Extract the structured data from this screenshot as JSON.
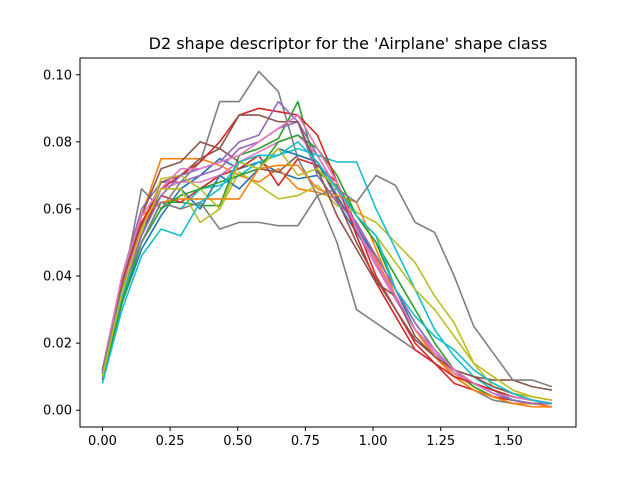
{
  "chart_data": {
    "type": "line",
    "title": "D2 shape descriptor for the 'Airplane' shape class",
    "xlabel": "",
    "ylabel": "",
    "xlim": [
      -0.083,
      1.75
    ],
    "ylim": [
      -0.005,
      0.105
    ],
    "xticks": [
      0.0,
      0.25,
      0.5,
      0.75,
      1.0,
      1.25,
      1.5
    ],
    "xtick_labels": [
      "0.00",
      "0.25",
      "0.50",
      "0.75",
      "1.00",
      "1.25",
      "1.50"
    ],
    "yticks": [
      0.0,
      0.02,
      0.04,
      0.06,
      0.08,
      0.1
    ],
    "ytick_labels": [
      "0.00",
      "0.02",
      "0.04",
      "0.06",
      "0.08",
      "0.10"
    ],
    "grid": false,
    "legend": "none",
    "x": [
      0.0,
      0.0722,
      0.1444,
      0.2167,
      0.2889,
      0.3611,
      0.4333,
      0.5056,
      0.5778,
      0.65,
      0.7222,
      0.7944,
      0.8667,
      0.9389,
      1.0111,
      1.0833,
      1.1556,
      1.2278,
      1.3,
      1.3722,
      1.4444,
      1.5167,
      1.5889,
      1.6611
    ],
    "series": [
      {
        "color": "#1f77b4",
        "values": [
          0.01,
          0.035,
          0.052,
          0.066,
          0.066,
          0.07,
          0.075,
          0.072,
          0.074,
          0.071,
          0.069,
          0.07,
          0.062,
          0.053,
          0.044,
          0.033,
          0.024,
          0.018,
          0.012,
          0.008,
          0.006,
          0.004,
          0.003,
          0.002
        ]
      },
      {
        "color": "#ff7f0e",
        "values": [
          0.011,
          0.038,
          0.058,
          0.075,
          0.075,
          0.075,
          0.073,
          0.07,
          0.068,
          0.072,
          0.066,
          0.065,
          0.063,
          0.056,
          0.045,
          0.034,
          0.024,
          0.016,
          0.011,
          0.007,
          0.004,
          0.002,
          0.001,
          0.001
        ]
      },
      {
        "color": "#2ca02c",
        "values": [
          0.009,
          0.033,
          0.05,
          0.062,
          0.062,
          0.061,
          0.061,
          0.076,
          0.078,
          0.081,
          0.092,
          0.071,
          0.067,
          0.058,
          0.05,
          0.04,
          0.03,
          0.02,
          0.012,
          0.007,
          0.004,
          0.003,
          0.002,
          0.002
        ]
      },
      {
        "color": "#d62728",
        "values": [
          0.011,
          0.036,
          0.054,
          0.064,
          0.062,
          0.066,
          0.07,
          0.072,
          0.076,
          0.067,
          0.075,
          0.073,
          0.068,
          0.055,
          0.04,
          0.03,
          0.02,
          0.014,
          0.008,
          0.006,
          0.004,
          0.003,
          0.002,
          0.001
        ]
      },
      {
        "color": "#9467bd",
        "values": [
          0.012,
          0.04,
          0.06,
          0.068,
          0.068,
          0.07,
          0.072,
          0.078,
          0.08,
          0.084,
          0.086,
          0.076,
          0.066,
          0.055,
          0.044,
          0.034,
          0.024,
          0.017,
          0.012,
          0.008,
          0.006,
          0.004,
          0.003,
          0.002
        ]
      },
      {
        "color": "#8c564b",
        "values": [
          0.011,
          0.037,
          0.055,
          0.068,
          0.07,
          0.075,
          0.078,
          0.074,
          0.072,
          0.071,
          0.076,
          0.074,
          0.063,
          0.05,
          0.039,
          0.03,
          0.021,
          0.016,
          0.012,
          0.01,
          0.009,
          0.009,
          0.007,
          0.006
        ]
      },
      {
        "color": "#e377c2",
        "values": [
          0.01,
          0.036,
          0.056,
          0.066,
          0.068,
          0.068,
          0.07,
          0.074,
          0.077,
          0.08,
          0.082,
          0.076,
          0.066,
          0.054,
          0.043,
          0.033,
          0.024,
          0.017,
          0.011,
          0.008,
          0.005,
          0.003,
          0.002,
          0.002
        ]
      },
      {
        "color": "#7f7f7f",
        "values": [
          0.012,
          0.036,
          0.066,
          0.06,
          0.068,
          0.074,
          0.092,
          0.092,
          0.101,
          0.095,
          0.075,
          0.064,
          0.05,
          0.03,
          0.026,
          0.022,
          0.018,
          0.014,
          0.01,
          0.006,
          0.003,
          0.002,
          0.002,
          0.002
        ]
      },
      {
        "color": "#bcbd22",
        "values": [
          0.009,
          0.035,
          0.053,
          0.069,
          0.07,
          0.066,
          0.06,
          0.071,
          0.067,
          0.063,
          0.064,
          0.067,
          0.061,
          0.059,
          0.056,
          0.05,
          0.044,
          0.034,
          0.026,
          0.014,
          0.007,
          0.005,
          0.004,
          0.003
        ]
      },
      {
        "color": "#17becf",
        "values": [
          0.01,
          0.034,
          0.05,
          0.062,
          0.06,
          0.066,
          0.067,
          0.07,
          0.074,
          0.076,
          0.078,
          0.076,
          0.074,
          0.074,
          0.06,
          0.048,
          0.036,
          0.024,
          0.016,
          0.01,
          0.006,
          0.003,
          0.002,
          0.002
        ]
      },
      {
        "color": "#1f77b4",
        "values": [
          0.009,
          0.032,
          0.048,
          0.058,
          0.066,
          0.06,
          0.07,
          0.066,
          0.072,
          0.078,
          0.076,
          0.074,
          0.064,
          0.054,
          0.046,
          0.036,
          0.024,
          0.018,
          0.012,
          0.008,
          0.005,
          0.003,
          0.002,
          0.002
        ]
      },
      {
        "color": "#ff7f0e",
        "values": [
          0.01,
          0.037,
          0.058,
          0.062,
          0.063,
          0.063,
          0.063,
          0.063,
          0.072,
          0.073,
          0.073,
          0.066,
          0.064,
          0.062,
          0.048,
          0.034,
          0.024,
          0.016,
          0.01,
          0.006,
          0.004,
          0.002,
          0.002,
          0.001
        ]
      },
      {
        "color": "#2ca02c",
        "values": [
          0.01,
          0.032,
          0.05,
          0.06,
          0.064,
          0.066,
          0.068,
          0.07,
          0.072,
          0.08,
          0.082,
          0.078,
          0.07,
          0.058,
          0.05,
          0.036,
          0.026,
          0.018,
          0.012,
          0.008,
          0.006,
          0.004,
          0.003,
          0.002
        ]
      },
      {
        "color": "#d62728",
        "values": [
          0.012,
          0.038,
          0.056,
          0.066,
          0.07,
          0.074,
          0.08,
          0.088,
          0.09,
          0.089,
          0.088,
          0.082,
          0.068,
          0.052,
          0.038,
          0.028,
          0.018,
          0.014,
          0.01,
          0.008,
          0.006,
          0.004,
          0.003,
          0.002
        ]
      },
      {
        "color": "#9467bd",
        "values": [
          0.011,
          0.036,
          0.052,
          0.064,
          0.07,
          0.072,
          0.074,
          0.08,
          0.082,
          0.092,
          0.086,
          0.07,
          0.062,
          0.056,
          0.046,
          0.036,
          0.026,
          0.018,
          0.012,
          0.008,
          0.005,
          0.003,
          0.002,
          0.002
        ]
      },
      {
        "color": "#8c564b",
        "values": [
          0.012,
          0.038,
          0.058,
          0.072,
          0.074,
          0.08,
          0.078,
          0.088,
          0.088,
          0.086,
          0.086,
          0.072,
          0.058,
          0.048,
          0.038,
          0.034,
          0.022,
          0.016,
          0.012,
          0.01,
          0.007,
          0.005,
          0.003,
          0.002
        ]
      },
      {
        "color": "#e377c2",
        "values": [
          0.012,
          0.04,
          0.058,
          0.066,
          0.072,
          0.072,
          0.074,
          0.076,
          0.08,
          0.084,
          0.088,
          0.078,
          0.068,
          0.054,
          0.044,
          0.034,
          0.024,
          0.018,
          0.012,
          0.008,
          0.005,
          0.004,
          0.003,
          0.002
        ]
      },
      {
        "color": "#7f7f7f",
        "values": [
          0.012,
          0.036,
          0.05,
          0.062,
          0.06,
          0.062,
          0.054,
          0.056,
          0.056,
          0.055,
          0.055,
          0.064,
          0.066,
          0.062,
          0.07,
          0.067,
          0.056,
          0.053,
          0.04,
          0.025,
          0.017,
          0.009,
          0.009,
          0.007
        ]
      },
      {
        "color": "#bcbd22",
        "values": [
          0.01,
          0.035,
          0.054,
          0.066,
          0.066,
          0.056,
          0.06,
          0.074,
          0.072,
          0.078,
          0.07,
          0.072,
          0.066,
          0.058,
          0.052,
          0.044,
          0.036,
          0.03,
          0.022,
          0.014,
          0.01,
          0.006,
          0.004,
          0.003
        ]
      },
      {
        "color": "#17becf",
        "values": [
          0.008,
          0.03,
          0.046,
          0.054,
          0.052,
          0.062,
          0.066,
          0.074,
          0.076,
          0.076,
          0.08,
          0.074,
          0.066,
          0.058,
          0.052,
          0.036,
          0.028,
          0.022,
          0.018,
          0.012,
          0.008,
          0.005,
          0.003,
          0.002
        ]
      }
    ]
  }
}
